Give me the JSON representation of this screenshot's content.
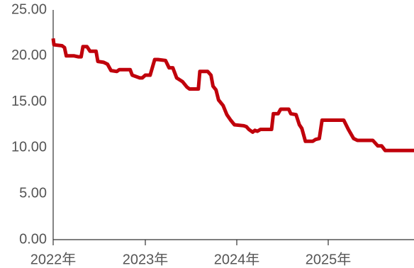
{
  "chart_data": {
    "type": "line",
    "title": "",
    "xlabel": "",
    "ylabel": "",
    "ylim": [
      0,
      25
    ],
    "y_ticks": [
      "0.00",
      "5.00",
      "10.00",
      "15.00",
      "20.00",
      "25.00"
    ],
    "x_ticks": [
      {
        "label": "2022年",
        "date": "2022-01-01"
      },
      {
        "label": "2023年",
        "date": "2023-01-01"
      },
      {
        "label": "2024年",
        "date": "2024-01-01"
      },
      {
        "label": "2025年",
        "date": "2025-01-01"
      }
    ],
    "x_range": [
      "2022-01-01",
      "2025-12-31"
    ],
    "grid": false,
    "legend": "none",
    "series": [
      {
        "color": "#c0000b",
        "points": [
          [
            "2022-01-01",
            21.9
          ],
          [
            "2022-01-04",
            21.2
          ],
          [
            "2022-02-05",
            21.1
          ],
          [
            "2022-02-15",
            20.9
          ],
          [
            "2022-02-22",
            20.0
          ],
          [
            "2022-03-25",
            20.0
          ],
          [
            "2022-04-10",
            19.9
          ],
          [
            "2022-04-22",
            19.9
          ],
          [
            "2022-04-29",
            21.0
          ],
          [
            "2022-05-15",
            21.0
          ],
          [
            "2022-05-27",
            20.5
          ],
          [
            "2022-06-20",
            20.5
          ],
          [
            "2022-06-27",
            19.4
          ],
          [
            "2022-07-20",
            19.3
          ],
          [
            "2022-08-04",
            19.1
          ],
          [
            "2022-08-18",
            18.4
          ],
          [
            "2022-09-10",
            18.3
          ],
          [
            "2022-09-20",
            18.5
          ],
          [
            "2022-11-02",
            18.5
          ],
          [
            "2022-11-10",
            17.9
          ],
          [
            "2022-12-10",
            17.6
          ],
          [
            "2022-12-20",
            17.6
          ],
          [
            "2023-01-01",
            17.9
          ],
          [
            "2023-01-20",
            17.9
          ],
          [
            "2023-02-07",
            19.6
          ],
          [
            "2023-02-20",
            19.6
          ],
          [
            "2023-03-22",
            19.5
          ],
          [
            "2023-04-05",
            18.7
          ],
          [
            "2023-04-20",
            18.7
          ],
          [
            "2023-05-05",
            17.6
          ],
          [
            "2023-05-28",
            17.2
          ],
          [
            "2023-06-15",
            16.6
          ],
          [
            "2023-06-25",
            16.4
          ],
          [
            "2023-07-30",
            16.4
          ],
          [
            "2023-08-05",
            18.3
          ],
          [
            "2023-09-05",
            18.3
          ],
          [
            "2023-09-18",
            17.9
          ],
          [
            "2023-09-26",
            16.7
          ],
          [
            "2023-10-08",
            16.3
          ],
          [
            "2023-10-18",
            15.2
          ],
          [
            "2023-11-05",
            14.6
          ],
          [
            "2023-11-20",
            13.6
          ],
          [
            "2023-12-05",
            13.0
          ],
          [
            "2023-12-20",
            12.5
          ],
          [
            "2024-01-25",
            12.4
          ],
          [
            "2024-02-05",
            12.3
          ],
          [
            "2024-02-15",
            12.0
          ],
          [
            "2024-03-01",
            11.7
          ],
          [
            "2024-03-10",
            11.9
          ],
          [
            "2024-03-20",
            11.8
          ],
          [
            "2024-04-01",
            12.0
          ],
          [
            "2024-05-15",
            12.0
          ],
          [
            "2024-05-22",
            13.7
          ],
          [
            "2024-06-10",
            13.7
          ],
          [
            "2024-06-20",
            14.2
          ],
          [
            "2024-07-22",
            14.2
          ],
          [
            "2024-07-30",
            13.7
          ],
          [
            "2024-08-20",
            13.6
          ],
          [
            "2024-09-02",
            12.5
          ],
          [
            "2024-09-12",
            12.1
          ],
          [
            "2024-09-26",
            10.7
          ],
          [
            "2024-10-25",
            10.7
          ],
          [
            "2024-11-05",
            10.9
          ],
          [
            "2024-11-20",
            11.0
          ],
          [
            "2024-12-01",
            13.0
          ],
          [
            "2025-02-25",
            13.0
          ],
          [
            "2025-03-15",
            12.0
          ],
          [
            "2025-04-05",
            11.0
          ],
          [
            "2025-04-20",
            10.8
          ],
          [
            "2025-06-20",
            10.8
          ],
          [
            "2025-07-10",
            10.2
          ],
          [
            "2025-07-25",
            10.2
          ],
          [
            "2025-08-08",
            9.7
          ],
          [
            "2025-12-31",
            9.7
          ]
        ]
      }
    ]
  }
}
